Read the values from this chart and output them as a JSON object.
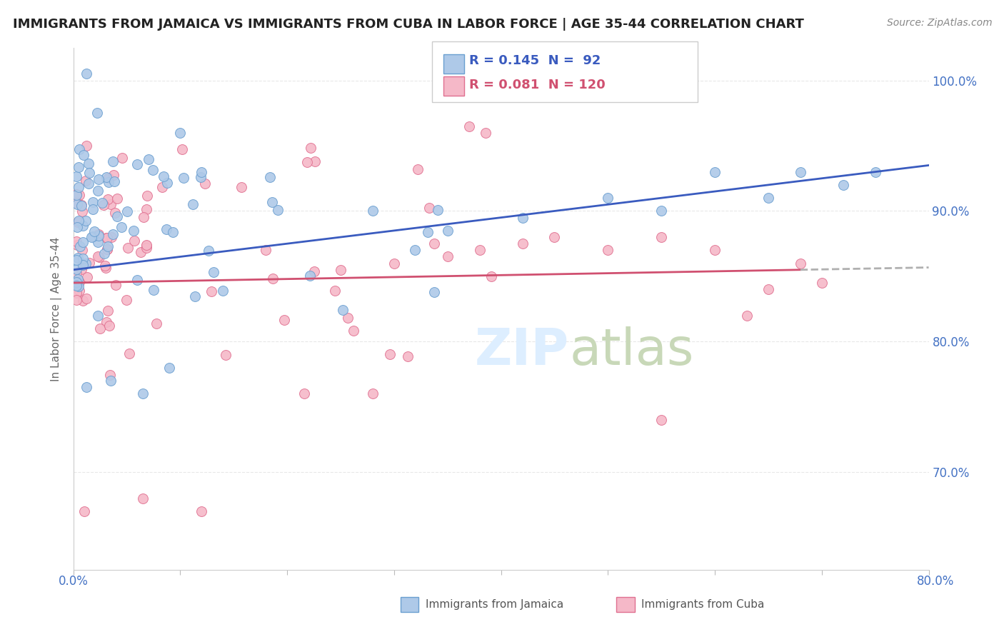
{
  "title": "IMMIGRANTS FROM JAMAICA VS IMMIGRANTS FROM CUBA IN LABOR FORCE | AGE 35-44 CORRELATION CHART",
  "source": "Source: ZipAtlas.com",
  "ylabel": "In Labor Force | Age 35-44",
  "xlim": [
    0.0,
    0.8
  ],
  "ylim": [
    0.625,
    1.025
  ],
  "jamaica_R": 0.145,
  "jamaica_N": 92,
  "cuba_R": 0.081,
  "cuba_N": 120,
  "jamaica_color": "#aec9e8",
  "cuba_color": "#f5b8c8",
  "jamaica_edge_color": "#6a9fd0",
  "cuba_edge_color": "#e07090",
  "jamaica_trend_color": "#3a5bbf",
  "cuba_trend_color": "#d05070",
  "dashed_trend_color": "#b0b0b0",
  "background_color": "#ffffff",
  "grid_color": "#e8e8e8",
  "title_color": "#222222",
  "axis_label_color": "#4472c4",
  "source_color": "#888888",
  "ylabel_color": "#666666",
  "watermark_color": "#ddeeff",
  "right_ytick_labels": [
    "70.0%",
    "80.0%",
    "90.0%",
    "100.0%"
  ],
  "right_ytick_vals": [
    0.7,
    0.8,
    0.9,
    1.0
  ],
  "xtick_vals": [
    0.0,
    0.1,
    0.2,
    0.3,
    0.4,
    0.5,
    0.6,
    0.7,
    0.8
  ],
  "legend_jamaica_label": "R = 0.145  N =  92",
  "legend_cuba_label": "R = 0.081  N = 120",
  "bottom_legend_jamaica": "Immigrants from Jamaica",
  "bottom_legend_cuba": "Immigrants from Cuba"
}
